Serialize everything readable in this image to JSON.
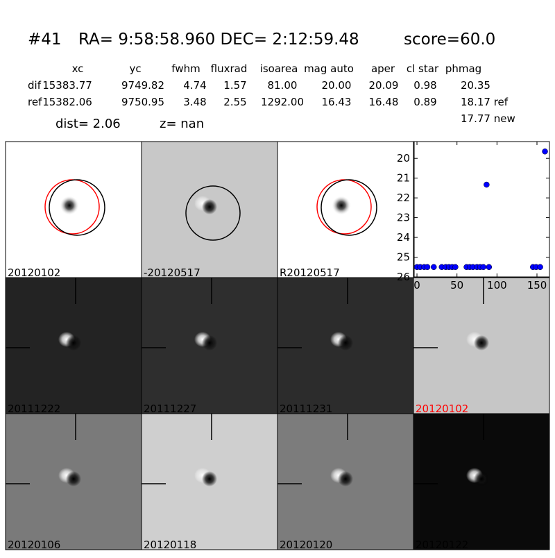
{
  "header": {
    "id": "#41",
    "coords": "RA= 9:58:58.960 DEC= 2:12:59.48",
    "score": "score=60.0"
  },
  "table": {
    "columns": [
      "xc",
      "yc",
      "fwhm",
      "fluxrad",
      "isoarea",
      "mag auto",
      "aper",
      "cl star",
      "phmag"
    ],
    "rows": [
      [
        "dif",
        "15383.77",
        "9749.82",
        "4.74",
        "1.57",
        "81.00",
        "20.00",
        "20.09",
        "0.98",
        "20.35"
      ],
      [
        "ref",
        "15382.06",
        "9750.95",
        "3.48",
        "2.55",
        "1292.00",
        "16.43",
        "16.48",
        "0.89",
        "18.17 ref"
      ]
    ],
    "extra": "17.77 new"
  },
  "dist": "dist=  2.06",
  "z": "z=   nan",
  "panels": [
    {
      "label": "20120102",
      "background": "#ffffff",
      "label_color": "#000000"
    },
    {
      "label": "-20120517",
      "background": "#c8c8c8",
      "label_color": "#000000"
    },
    {
      "label": "R20120517",
      "background": "#ffffff",
      "label_color": "#000000"
    },
    {
      "label": "20111222",
      "background": "#232323",
      "label_color": "#000000"
    },
    {
      "label": "20111227",
      "background": "#2e2e2e",
      "label_color": "#000000"
    },
    {
      "label": "20111231",
      "background": "#2c2c2c",
      "label_color": "#000000"
    },
    {
      "label": "20120102",
      "background": "#c6c6c6",
      "label_color": "#ff0000"
    },
    {
      "label": "20120106",
      "background": "#7a7a7a",
      "label_color": "#000000"
    },
    {
      "label": "20120118",
      "background": "#cfcfcf",
      "label_color": "#000000"
    },
    {
      "label": "20120120",
      "background": "#7c7c7c",
      "label_color": "#000000"
    },
    {
      "label": "20120122",
      "background": "#0a0a0a",
      "label_color": "#000000"
    }
  ],
  "chart_data": {
    "type": "scatter",
    "color": "#0000ff",
    "x": [
      0,
      4,
      9,
      13,
      21,
      31,
      36,
      40,
      44,
      48,
      62,
      66,
      70,
      75,
      79,
      83,
      87,
      90,
      145,
      149,
      154,
      160
    ],
    "values": [
      25.5,
      25.5,
      25.5,
      25.5,
      25.5,
      25.5,
      25.5,
      25.5,
      25.5,
      25.5,
      25.5,
      25.5,
      25.5,
      25.5,
      25.5,
      25.5,
      21.33,
      25.5,
      25.5,
      25.5,
      25.5,
      19.65
    ],
    "xlim": [
      -3.5,
      165.6
    ],
    "ylim": [
      26,
      19.15
    ],
    "xticks": [
      0,
      50,
      100,
      150
    ],
    "yticks": [
      20,
      21,
      22,
      23,
      24,
      25,
      26
    ]
  }
}
